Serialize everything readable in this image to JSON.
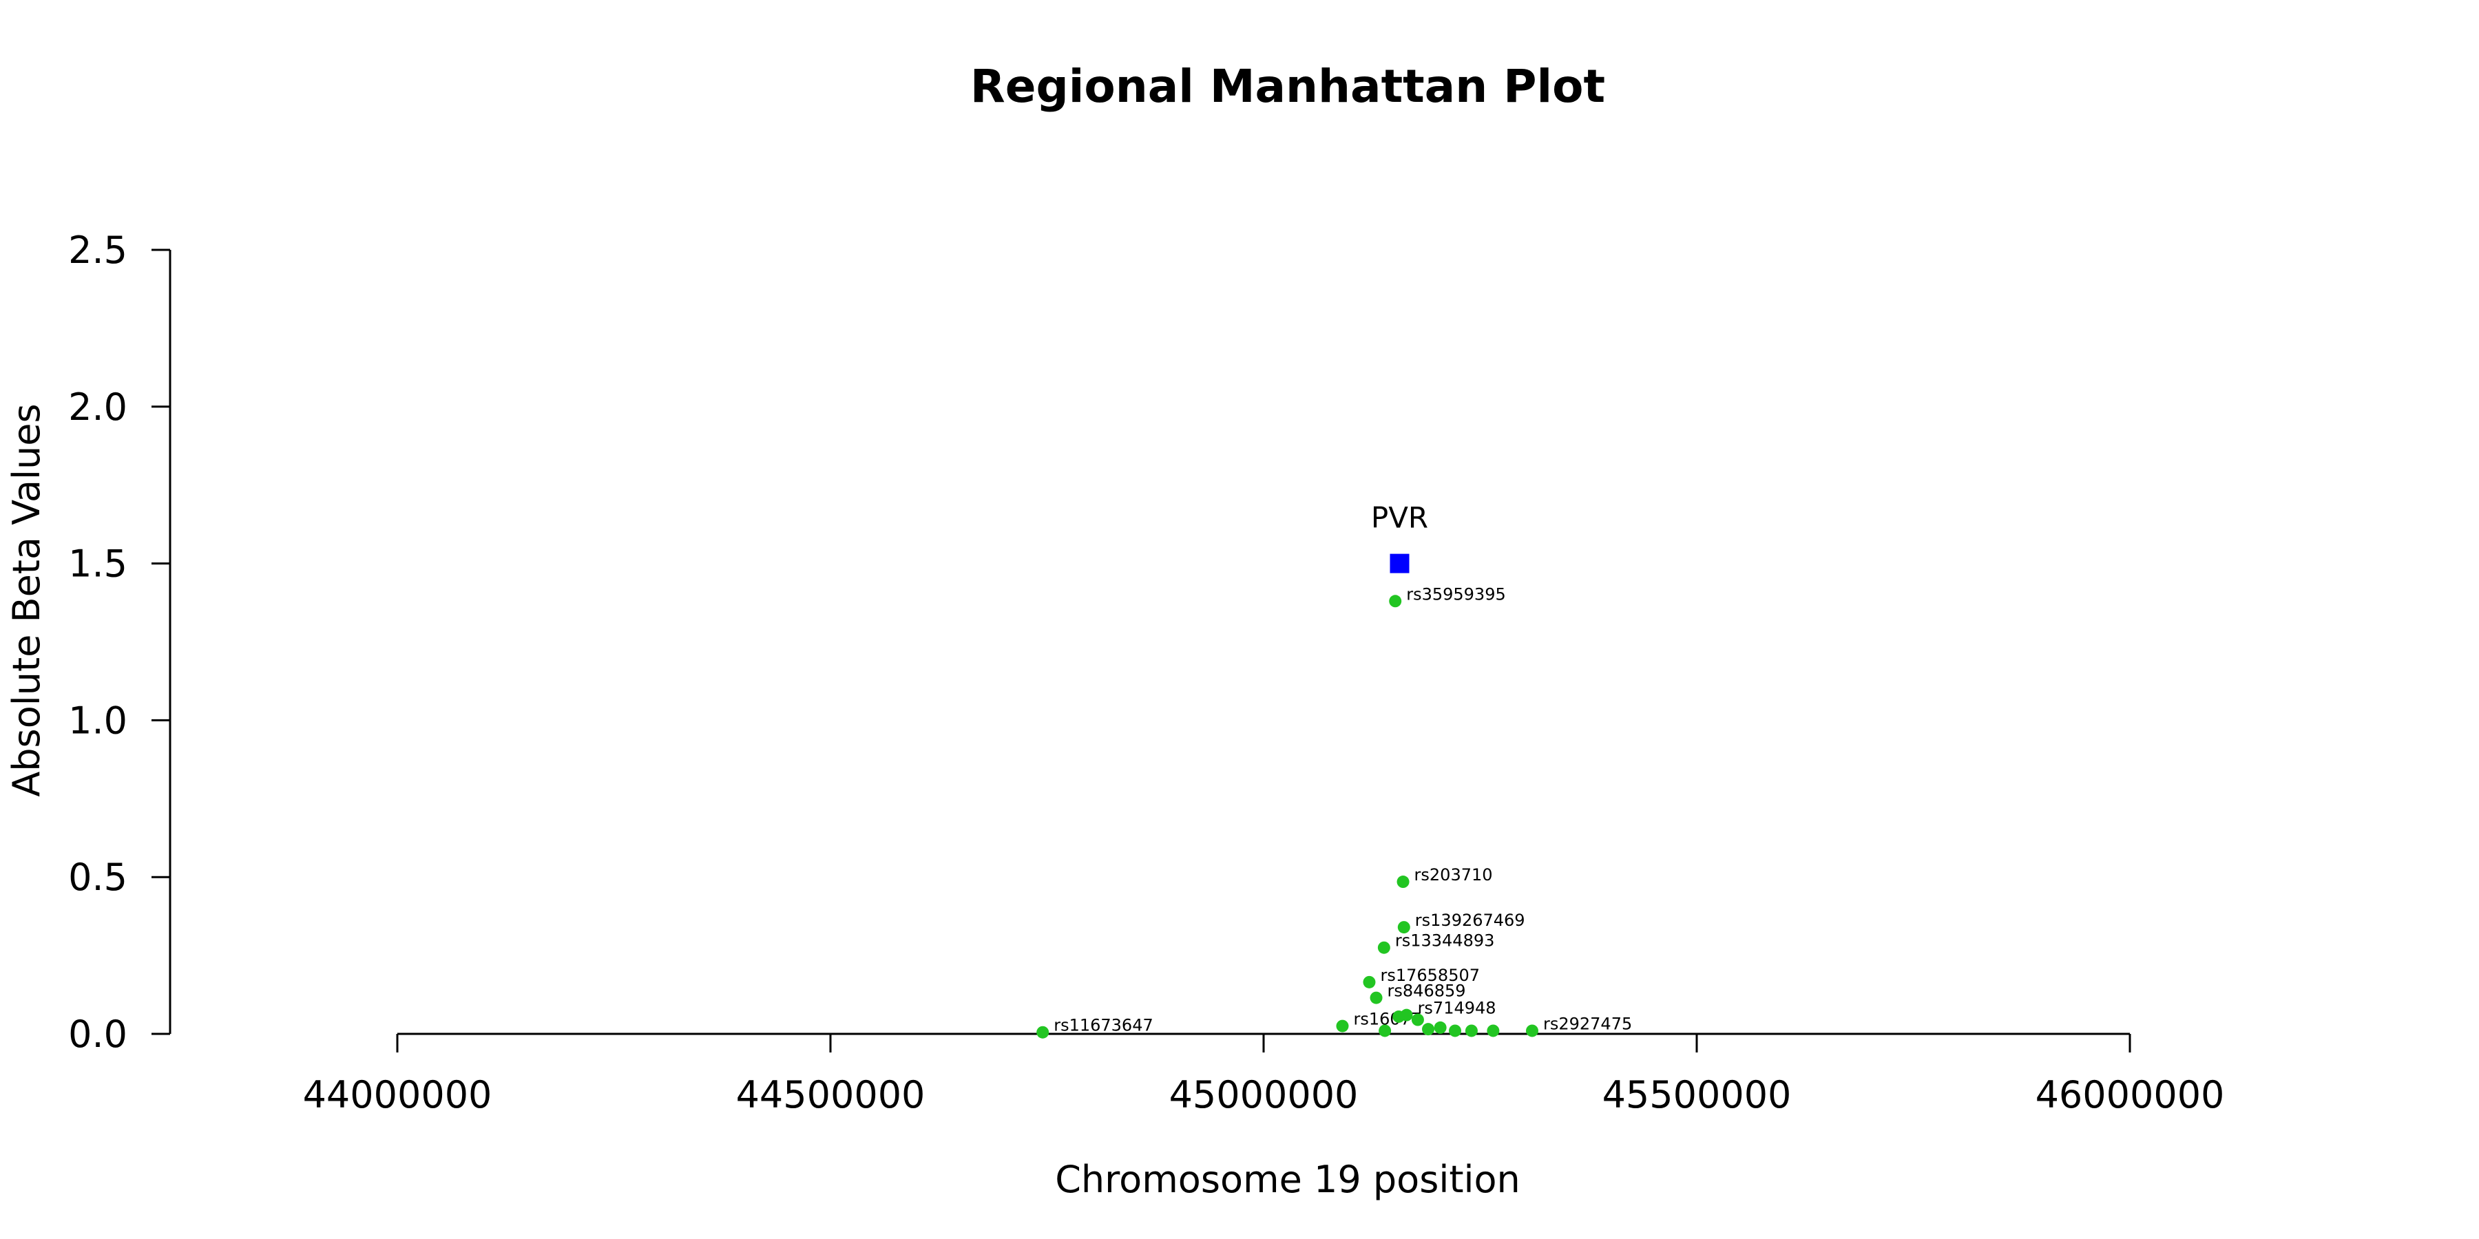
{
  "chart_data": {
    "type": "scatter",
    "title": "Regional Manhattan Plot",
    "xlabel": "Chromosome 19 position",
    "ylabel": "Absolute Beta Values",
    "xlim": [
      44000000,
      46000000
    ],
    "ylim": [
      0,
      2.5
    ],
    "x_ticks": [
      "44000000",
      "44500000",
      "45000000",
      "45500000",
      "46000000"
    ],
    "y_ticks": [
      "0.0",
      "0.5",
      "1.0",
      "1.5",
      "2.0",
      "2.5"
    ],
    "grid": false,
    "legend": "none",
    "series": [
      {
        "kind": "snp",
        "marker": "circle",
        "color": "#22c522",
        "points": [
          {
            "id": "rs35959395",
            "x": 45152000,
            "y": 1.38
          },
          {
            "id": "rs203710",
            "x": 45161000,
            "y": 0.485
          },
          {
            "id": "rs139267469",
            "x": 45162000,
            "y": 0.34
          },
          {
            "id": "rs13344893",
            "x": 45139000,
            "y": 0.275
          },
          {
            "id": "rs17658507",
            "x": 45122000,
            "y": 0.165
          },
          {
            "id": "rs846859",
            "x": 45130000,
            "y": 0.115
          },
          {
            "id": "rs16077",
            "x": 45091000,
            "y": 0.025
          },
          {
            "id": "rs714948",
            "x": 45165000,
            "y": 0.06
          },
          {
            "id": "rs2927475",
            "x": 45310000,
            "y": 0.01
          },
          {
            "id": "rs11673647",
            "x": 44745000,
            "y": 0.005
          },
          {
            "id": "",
            "x": 45140000,
            "y": 0.01
          },
          {
            "id": "",
            "x": 45156000,
            "y": 0.055
          },
          {
            "id": "",
            "x": 45178000,
            "y": 0.045
          },
          {
            "id": "",
            "x": 45190000,
            "y": 0.015
          },
          {
            "id": "",
            "x": 45204000,
            "y": 0.02
          },
          {
            "id": "",
            "x": 45221000,
            "y": 0.01
          },
          {
            "id": "",
            "x": 45240000,
            "y": 0.01
          },
          {
            "id": "",
            "x": 45265000,
            "y": 0.01
          }
        ]
      },
      {
        "kind": "gene",
        "marker": "square",
        "color": "#0000ff",
        "points": [
          {
            "id": "PVR",
            "x": 45157000,
            "y": 1.5
          }
        ]
      }
    ]
  }
}
